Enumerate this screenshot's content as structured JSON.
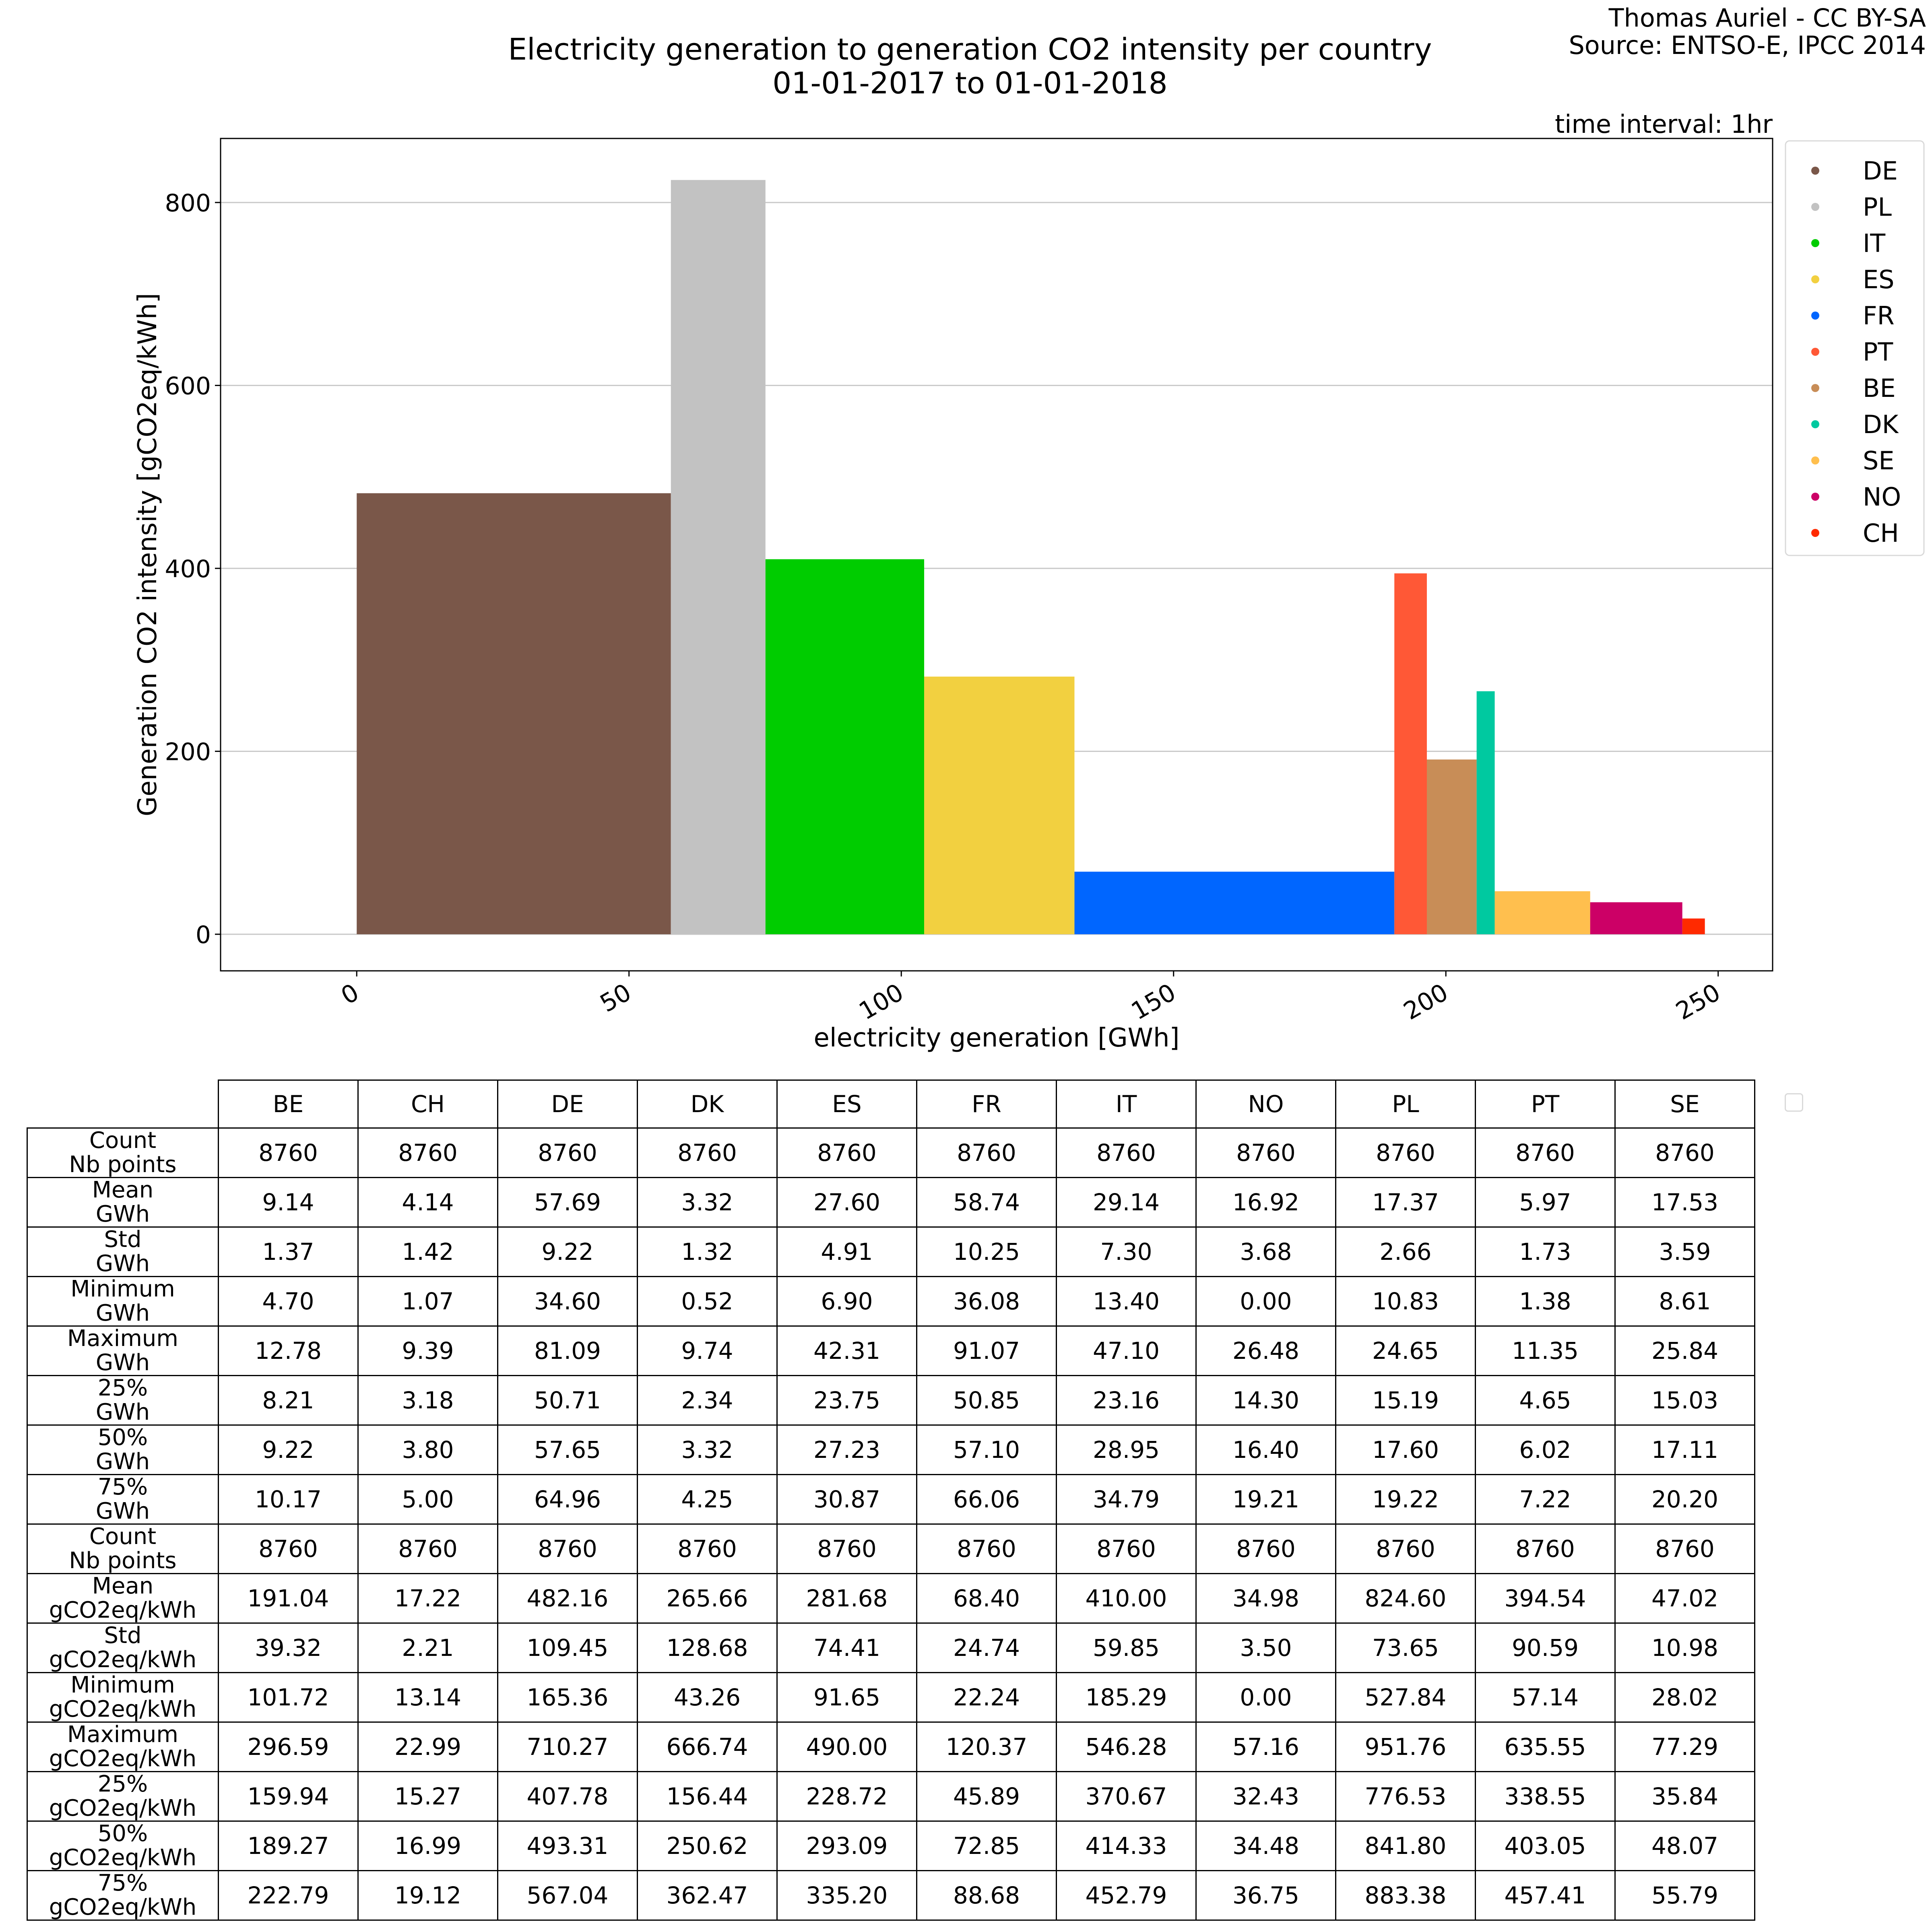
{
  "attribution": {
    "author": "Thomas Auriel - CC BY-SA",
    "source": "Source: ENTSO-E, IPCC 2014"
  },
  "chart_data": {
    "type": "bar",
    "title": "Electricity generation to generation CO2 intensity per country",
    "subtitle": "01-01-2017 to 01-01-2018",
    "annotation": "time interval: 1hr",
    "xlabel": "electricity generation [GWh]",
    "ylabel": "Generation CO2 intensity [gCO2eq/kWh]",
    "xlim": [
      -25,
      260
    ],
    "ylim": [
      -40,
      870
    ],
    "xticks": [
      0,
      50,
      100,
      150,
      200,
      250
    ],
    "yticks": [
      0,
      200,
      400,
      600,
      800
    ],
    "grid": "horizontal",
    "legend_position": "right",
    "series": [
      {
        "name": "DE",
        "width": 57.69,
        "value": 482.16,
        "color": "#7a5749"
      },
      {
        "name": "PL",
        "width": 17.37,
        "value": 824.6,
        "color": "#c2c2c2"
      },
      {
        "name": "IT",
        "width": 29.14,
        "value": 410.0,
        "color": "#00cc00"
      },
      {
        "name": "ES",
        "width": 27.6,
        "value": 281.68,
        "color": "#f2d040"
      },
      {
        "name": "FR",
        "width": 58.74,
        "value": 68.4,
        "color": "#0066ff"
      },
      {
        "name": "PT",
        "width": 5.97,
        "value": 394.54,
        "color": "#ff5836"
      },
      {
        "name": "BE",
        "width": 9.14,
        "value": 191.04,
        "color": "#c88d57"
      },
      {
        "name": "DK",
        "width": 3.32,
        "value": 265.66,
        "color": "#00c9a0"
      },
      {
        "name": "SE",
        "width": 17.53,
        "value": 47.02,
        "color": "#ffbf4e"
      },
      {
        "name": "NO",
        "width": 16.92,
        "value": 34.98,
        "color": "#cc0066"
      },
      {
        "name": "CH",
        "width": 4.14,
        "value": 17.22,
        "color": "#ff2a00"
      }
    ]
  },
  "table": {
    "columns": [
      "BE",
      "CH",
      "DE",
      "DK",
      "ES",
      "FR",
      "IT",
      "NO",
      "PL",
      "PT",
      "SE"
    ],
    "rows": [
      {
        "label": [
          "Count",
          "Nb points"
        ],
        "values": [
          "8760",
          "8760",
          "8760",
          "8760",
          "8760",
          "8760",
          "8760",
          "8760",
          "8760",
          "8760",
          "8760"
        ]
      },
      {
        "label": [
          "Mean",
          "GWh"
        ],
        "values": [
          "9.14",
          "4.14",
          "57.69",
          "3.32",
          "27.60",
          "58.74",
          "29.14",
          "16.92",
          "17.37",
          "5.97",
          "17.53"
        ]
      },
      {
        "label": [
          "Std",
          "GWh"
        ],
        "values": [
          "1.37",
          "1.42",
          "9.22",
          "1.32",
          "4.91",
          "10.25",
          "7.30",
          "3.68",
          "2.66",
          "1.73",
          "3.59"
        ]
      },
      {
        "label": [
          "Minimum",
          "GWh"
        ],
        "values": [
          "4.70",
          "1.07",
          "34.60",
          "0.52",
          "6.90",
          "36.08",
          "13.40",
          "0.00",
          "10.83",
          "1.38",
          "8.61"
        ]
      },
      {
        "label": [
          "Maximum",
          "GWh"
        ],
        "values": [
          "12.78",
          "9.39",
          "81.09",
          "9.74",
          "42.31",
          "91.07",
          "47.10",
          "26.48",
          "24.65",
          "11.35",
          "25.84"
        ]
      },
      {
        "label": [
          "25%",
          "GWh"
        ],
        "values": [
          "8.21",
          "3.18",
          "50.71",
          "2.34",
          "23.75",
          "50.85",
          "23.16",
          "14.30",
          "15.19",
          "4.65",
          "15.03"
        ]
      },
      {
        "label": [
          "50%",
          "GWh"
        ],
        "values": [
          "9.22",
          "3.80",
          "57.65",
          "3.32",
          "27.23",
          "57.10",
          "28.95",
          "16.40",
          "17.60",
          "6.02",
          "17.11"
        ]
      },
      {
        "label": [
          "75%",
          "GWh"
        ],
        "values": [
          "10.17",
          "5.00",
          "64.96",
          "4.25",
          "30.87",
          "66.06",
          "34.79",
          "19.21",
          "19.22",
          "7.22",
          "20.20"
        ]
      },
      {
        "label": [
          "Count",
          "Nb points"
        ],
        "values": [
          "8760",
          "8760",
          "8760",
          "8760",
          "8760",
          "8760",
          "8760",
          "8760",
          "8760",
          "8760",
          "8760"
        ]
      },
      {
        "label": [
          "Mean",
          "gCO2eq/kWh"
        ],
        "values": [
          "191.04",
          "17.22",
          "482.16",
          "265.66",
          "281.68",
          "68.40",
          "410.00",
          "34.98",
          "824.60",
          "394.54",
          "47.02"
        ]
      },
      {
        "label": [
          "Std",
          "gCO2eq/kWh"
        ],
        "values": [
          "39.32",
          "2.21",
          "109.45",
          "128.68",
          "74.41",
          "24.74",
          "59.85",
          "3.50",
          "73.65",
          "90.59",
          "10.98"
        ]
      },
      {
        "label": [
          "Minimum",
          "gCO2eq/kWh"
        ],
        "values": [
          "101.72",
          "13.14",
          "165.36",
          "43.26",
          "91.65",
          "22.24",
          "185.29",
          "0.00",
          "527.84",
          "57.14",
          "28.02"
        ]
      },
      {
        "label": [
          "Maximum",
          "gCO2eq/kWh"
        ],
        "values": [
          "296.59",
          "22.99",
          "710.27",
          "666.74",
          "490.00",
          "120.37",
          "546.28",
          "57.16",
          "951.76",
          "635.55",
          "77.29"
        ]
      },
      {
        "label": [
          "25%",
          "gCO2eq/kWh"
        ],
        "values": [
          "159.94",
          "15.27",
          "407.78",
          "156.44",
          "228.72",
          "45.89",
          "370.67",
          "32.43",
          "776.53",
          "338.55",
          "35.84"
        ]
      },
      {
        "label": [
          "50%",
          "gCO2eq/kWh"
        ],
        "values": [
          "189.27",
          "16.99",
          "493.31",
          "250.62",
          "293.09",
          "72.85",
          "414.33",
          "34.48",
          "841.80",
          "403.05",
          "48.07"
        ]
      },
      {
        "label": [
          "75%",
          "gCO2eq/kWh"
        ],
        "values": [
          "222.79",
          "19.12",
          "567.04",
          "362.47",
          "335.20",
          "88.68",
          "452.79",
          "36.75",
          "883.38",
          "457.41",
          "55.79"
        ]
      }
    ]
  }
}
